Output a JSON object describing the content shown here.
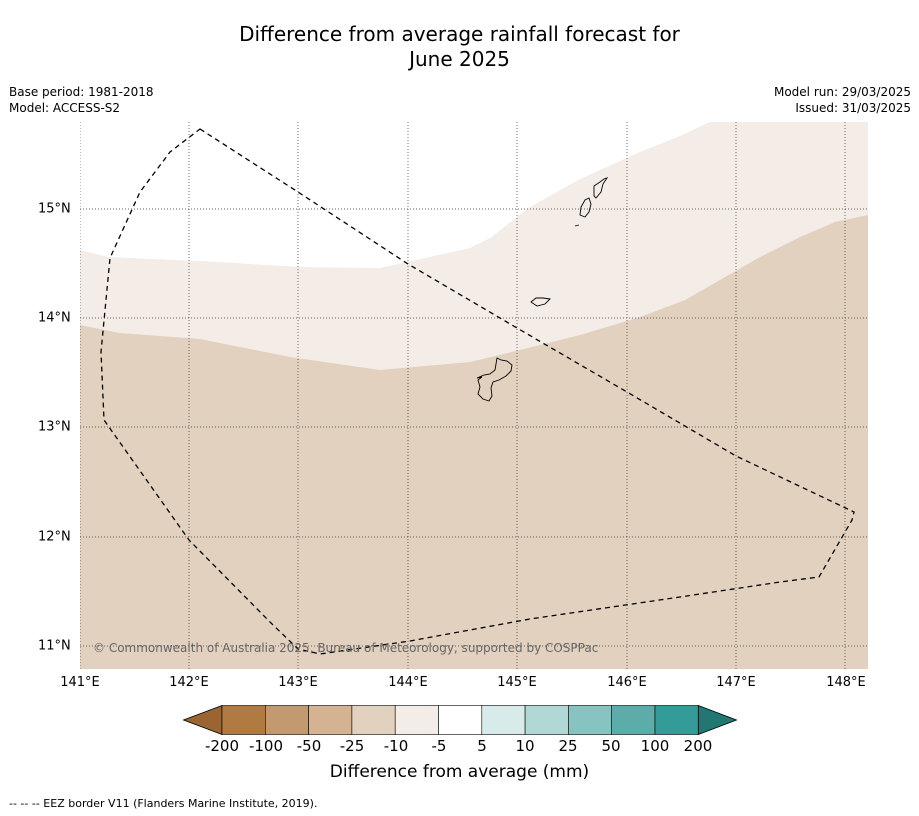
{
  "title_line1": "Difference from average rainfall forecast for",
  "title_line2": "June 2025",
  "meta_left": {
    "base_period": "Base period: 1981-2018",
    "model": "Model: ACCESS-S2"
  },
  "meta_right": {
    "model_run": "Model run: 29/03/2025",
    "issued": "Issued: 31/03/2025"
  },
  "latitude_labels": [
    "15°N",
    "14°N",
    "13°N",
    "12°N",
    "11°N"
  ],
  "longitude_labels": [
    "141°E",
    "142°E",
    "143°E",
    "144°E",
    "145°E",
    "146°E",
    "147°E",
    "148°E"
  ],
  "copyright": "© Commonwealth of Australia 2025, Bureau of Meteorology, supported by COSPPac",
  "colorbar": {
    "labels": [
      "-200",
      "-100",
      "-50",
      "-25",
      "-10",
      "-5",
      "5",
      "10",
      "25",
      "50",
      "100",
      "200"
    ],
    "colors": [
      "#9a6433",
      "#b07a42",
      "#c39a70",
      "#d5b291",
      "#e3d1bf",
      "#f4ede7",
      "#ffffff",
      "#d6ebea",
      "#b0d9d6",
      "#86c3c1",
      "#5cadaa",
      "#339b98",
      "#237772"
    ],
    "title": "Difference from average (mm)"
  },
  "footnote": "--  --  -- EEZ border V11 (Flanders Marine Institute, 2019).",
  "map_colors": {
    "band_light": "#f4ede7",
    "band_tan": "#e3d1bf",
    "background": "#ffffff",
    "land_outline": "#000000"
  }
}
